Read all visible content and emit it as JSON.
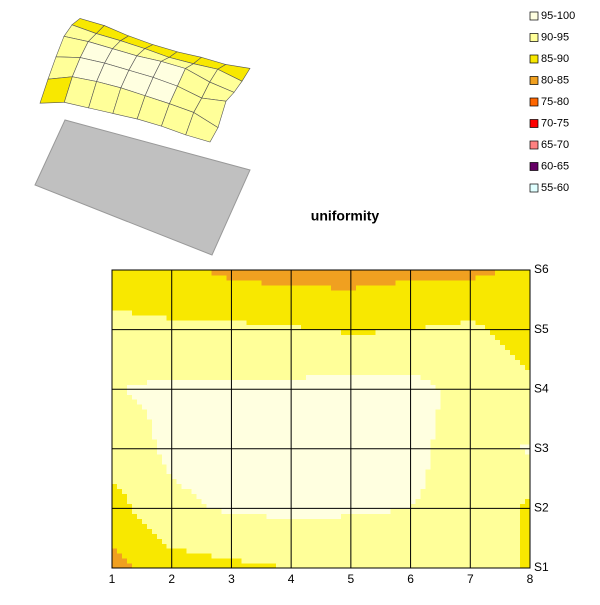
{
  "chart_data": {
    "type": "contour",
    "title": "uniformity",
    "x": [
      1,
      2,
      3,
      4,
      5,
      6,
      7,
      8
    ],
    "series": [
      {
        "name": "S1",
        "values": [
          83,
          88,
          89,
          90,
          91,
          91,
          90,
          90
        ]
      },
      {
        "name": "S2",
        "values": [
          88,
          94,
          95.5,
          96,
          95.5,
          95,
          94,
          89
        ]
      },
      {
        "name": "S3",
        "values": [
          92,
          96,
          97,
          97,
          97,
          96,
          93,
          95.5
        ]
      },
      {
        "name": "S4",
        "values": [
          94.8,
          96,
          96,
          96,
          97,
          97,
          93,
          91
        ]
      },
      {
        "name": "S5",
        "values": [
          92,
          91,
          91,
          90.5,
          89.5,
          90,
          91,
          88
        ]
      },
      {
        "name": "S6",
        "values": [
          86,
          86,
          84,
          83,
          83,
          84,
          84,
          86
        ]
      }
    ],
    "legend": [
      {
        "label": "95-100",
        "range": [
          95,
          100
        ],
        "color": "#ffffe0"
      },
      {
        "label": "90-95",
        "range": [
          90,
          95
        ],
        "color": "#ffff99"
      },
      {
        "label": "85-90",
        "range": [
          85,
          90
        ],
        "color": "#f8e800"
      },
      {
        "label": "80-85",
        "range": [
          80,
          85
        ],
        "color": "#f0a020"
      },
      {
        "label": "75-80",
        "range": [
          75,
          80
        ],
        "color": "#ff6600"
      },
      {
        "label": "70-75",
        "range": [
          70,
          75
        ],
        "color": "#ff0000"
      },
      {
        "label": "65-70",
        "range": [
          65,
          70
        ],
        "color": "#ff8080"
      },
      {
        "label": "60-65",
        "range": [
          60,
          65
        ],
        "color": "#660066"
      },
      {
        "label": "55-60",
        "range": [
          55,
          60
        ],
        "color": "#e0ffff"
      }
    ]
  }
}
